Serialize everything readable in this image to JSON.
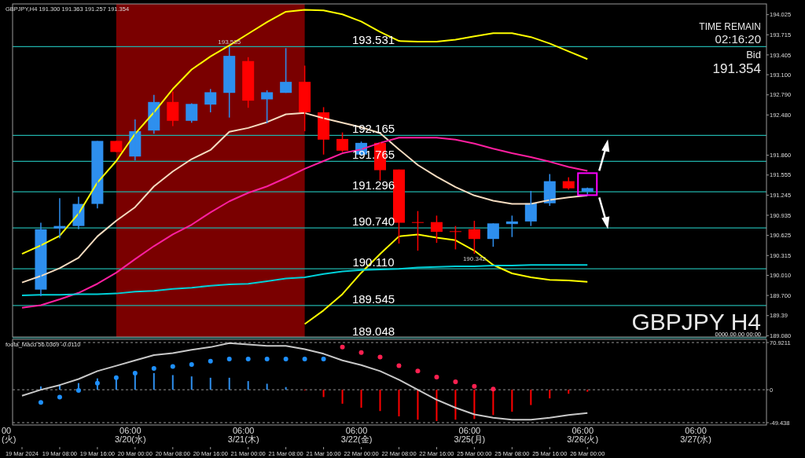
{
  "chart_data": [
    {
      "type": "candlestick",
      "title": "GBPJPY,H4 191.300 191.363 191.257 191.354",
      "categories": [
        null,
        null,
        null,
        null,
        null,
        null,
        null,
        null,
        null,
        null,
        null,
        null,
        null,
        null,
        null,
        null,
        null,
        null,
        null,
        null,
        null,
        null,
        null,
        null,
        null,
        null,
        null,
        null,
        null,
        null,
        null,
        null,
        null,
        null,
        null,
        null,
        null,
        null,
        null,
        null
      ],
      "ohlc": [
        null,
        [
          189.79,
          190.82,
          189.69,
          190.72
        ],
        [
          190.73,
          191.2,
          190.58,
          190.77
        ],
        [
          190.77,
          191.22,
          190.72,
          191.11
        ],
        [
          191.11,
          192.08,
          191.04,
          192.08
        ],
        [
          192.08,
          192.08,
          191.91,
          191.91
        ],
        [
          191.84,
          192.41,
          191.78,
          192.23
        ],
        [
          192.24,
          192.79,
          192.19,
          192.68
        ],
        [
          192.68,
          192.84,
          192.31,
          192.39
        ],
        [
          192.39,
          192.66,
          192.36,
          192.65
        ],
        [
          192.64,
          192.88,
          192.52,
          192.83
        ],
        [
          192.82,
          193.535,
          192.44,
          193.39
        ],
        [
          193.31,
          193.37,
          192.59,
          192.7
        ],
        [
          192.72,
          192.86,
          192.35,
          192.83
        ],
        [
          192.82,
          193.51,
          192.82,
          192.99
        ],
        [
          192.99,
          193.24,
          192.23,
          192.52
        ],
        [
          192.52,
          192.6,
          191.87,
          192.1
        ],
        [
          192.11,
          192.21,
          191.91,
          191.93
        ],
        [
          191.87,
          192.07,
          191.85,
          192.05
        ],
        [
          192.05,
          192.06,
          191.47,
          191.63
        ],
        [
          191.64,
          191.64,
          190.5,
          190.82
        ],
        [
          190.83,
          191.0,
          190.39,
          190.82
        ],
        [
          190.83,
          190.93,
          190.51,
          190.68
        ],
        [
          190.69,
          190.77,
          190.41,
          190.68
        ],
        [
          190.72,
          190.85,
          190.342,
          190.57
        ],
        [
          190.57,
          190.81,
          190.45,
          190.81
        ],
        [
          190.8,
          190.93,
          190.6,
          190.84
        ],
        [
          190.84,
          191.31,
          190.77,
          191.12
        ],
        [
          191.12,
          191.57,
          191.08,
          191.46
        ],
        [
          191.46,
          191.52,
          191.33,
          191.35
        ],
        [
          191.3,
          191.363,
          191.257,
          191.354
        ],
        null,
        null,
        null,
        null,
        null,
        null,
        null,
        null,
        null
      ],
      "colors": [
        null,
        "#2e8fee",
        "#2e8fee",
        "#2e8fee",
        "#2e8fee",
        "#ff0000",
        "#2e8fee",
        "#2e8fee",
        "#ff0000",
        "#2e8fee",
        "#2e8fee",
        "#2e8fee",
        "#ff0000",
        "#2e8fee",
        "#2e8fee",
        "#ff0000",
        "#ff0000",
        "#ff0000",
        "#2e8fee",
        "#ff0000",
        "#ff0000",
        "#ff0000",
        "#ff0000",
        "#ff0000",
        "#ff0000",
        "#2e8fee",
        "#2e8fee",
        "#2e8fee",
        "#2e8fee",
        "#ff0000",
        "#2e8fee",
        null,
        null,
        null,
        null,
        null,
        null,
        null,
        null,
        null
      ],
      "series": [
        {
          "type": "line",
          "color": "#ffff00",
          "values": [
            190.34,
            190.47,
            190.62,
            190.96,
            191.44,
            191.77,
            192.19,
            192.52,
            192.88,
            193.18,
            193.38,
            193.55,
            193.73,
            193.91,
            194.07,
            194.1,
            194.09,
            194.03,
            193.92,
            193.76,
            193.62,
            193.61,
            193.61,
            193.64,
            193.69,
            193.74,
            193.74,
            193.68,
            193.58,
            193.46,
            193.34,
            null,
            null,
            null,
            null,
            null,
            null,
            null,
            null,
            null
          ]
        },
        {
          "type": "line",
          "color": "#ffff00",
          "values": [
            null,
            null,
            null,
            null,
            null,
            null,
            null,
            null,
            null,
            null,
            null,
            null,
            null,
            null,
            null,
            189.26,
            189.47,
            189.72,
            190.05,
            190.34,
            190.61,
            190.64,
            190.59,
            190.55,
            190.39,
            190.17,
            190.04,
            189.98,
            189.94,
            189.93,
            189.91,
            null,
            null,
            null,
            null,
            null,
            null,
            null,
            null,
            null
          ]
        },
        {
          "type": "line",
          "color": "#f5dcc0",
          "values": [
            189.9,
            190.0,
            190.12,
            190.28,
            190.61,
            190.85,
            191.06,
            191.38,
            191.61,
            191.8,
            191.94,
            192.22,
            192.28,
            192.37,
            192.49,
            192.51,
            192.43,
            192.36,
            192.29,
            192.2,
            191.95,
            191.71,
            191.53,
            191.37,
            191.24,
            191.16,
            191.11,
            191.11,
            191.17,
            191.21,
            191.24,
            null,
            null,
            null,
            null,
            null,
            null,
            null,
            null,
            null
          ]
        },
        {
          "type": "line",
          "color": "#ff1fa0",
          "values": [
            189.51,
            189.55,
            189.64,
            189.74,
            189.88,
            190.05,
            190.26,
            190.46,
            190.64,
            190.79,
            190.98,
            191.15,
            191.28,
            191.38,
            191.51,
            191.65,
            191.77,
            191.89,
            191.95,
            192.05,
            192.13,
            192.13,
            192.13,
            192.1,
            192.04,
            191.96,
            191.89,
            191.83,
            191.76,
            191.68,
            191.62,
            null,
            null,
            null,
            null,
            null,
            null,
            null,
            null,
            null
          ]
        },
        {
          "type": "line",
          "color": "#00d0d8",
          "values": [
            189.7,
            189.71,
            189.71,
            189.72,
            189.72,
            189.73,
            189.76,
            189.77,
            189.8,
            189.82,
            189.85,
            189.87,
            189.88,
            189.92,
            189.96,
            189.98,
            190.03,
            190.07,
            190.09,
            190.1,
            190.11,
            190.13,
            190.14,
            190.15,
            190.15,
            190.16,
            190.16,
            190.17,
            190.17,
            190.17,
            190.17,
            null,
            null,
            null,
            null,
            null,
            null,
            null,
            null,
            null
          ]
        }
      ],
      "ylim": [
        189.06,
        194.19
      ],
      "yticks": [
        194.025,
        193.715,
        193.405,
        {
          "value": 193.1,
          "label": "193.100"
        },
        {
          "value": 192.79,
          "label": "192.790"
        },
        {
          "value": 192.48,
          "label": "192.480"
        },
        {
          "value": 191.86,
          "label": "191.860"
        },
        191.555,
        191.245,
        190.935,
        190.625,
        190.315,
        {
          "value": 190.01,
          "label": "190.010"
        },
        {
          "value": 189.7,
          "label": "189.700"
        },
        189.39,
        {
          "value": 189.08,
          "label": "189.080"
        }
      ],
      "tick_labels": "y",
      "ref_lines": [
        {
          "axis": "y",
          "value": 193.531,
          "label": "193.531",
          "color": "#20b2aa"
        },
        {
          "axis": "y",
          "value": 192.165,
          "label": "192.165",
          "color": "#20b2aa"
        },
        {
          "axis": "y",
          "value": 191.765,
          "label": "191.765",
          "color": "#20b2aa"
        },
        {
          "axis": "y",
          "value": 191.296,
          "label": "191.296",
          "color": "#20b2aa"
        },
        {
          "axis": "y",
          "value": 190.74,
          "label": "190.740",
          "color": "#20b2aa"
        },
        {
          "axis": "y",
          "value": 190.11,
          "label": "190.110",
          "color": "#20b2aa"
        },
        {
          "axis": "y",
          "value": 189.545,
          "label": "189.545",
          "color": "#20b2aa"
        },
        {
          "axis": "y",
          "value": 189.048,
          "label": "189.048",
          "color": "#20b2aa"
        }
      ],
      "annotations": [
        "TIME REMAIN",
        "02:16:20",
        "Bid",
        "191.354",
        "GBPJPY H4",
        "0000.00.00 00:00",
        {
          "text": "193.535",
          "y": 193.535
        },
        {
          "text": "190.342",
          "y": 190.342
        }
      ]
    },
    {
      "type": "bar",
      "title": "foota_Macd 56.0369 -0.0110",
      "categories": [
        "19 Mar 2024",
        null,
        "19 Mar 08:00",
        null,
        "19 Mar 16:00",
        null,
        "20 Mar 00:00",
        null,
        "20 Mar 08:00",
        null,
        "20 Mar 16:00",
        null,
        "21 Mar 00:00",
        null,
        "21 Mar 08:00",
        null,
        "21 Mar 16:00",
        null,
        "22 Mar 00:00",
        null,
        "22 Mar 08:00",
        null,
        "22 Mar 16:00",
        null,
        "25 Mar 00:00",
        null,
        "25 Mar 08:00",
        null,
        "25 Mar 16:00",
        null,
        "26 Mar 00:00",
        null,
        null,
        null,
        null,
        null,
        null,
        null,
        null,
        null
      ],
      "series": [
        {
          "colors": [
            null,
            "#2e8fee",
            "#2e8fee",
            "#2e8fee",
            "#2e8fee",
            "#2e8fee",
            "#2e8fee",
            "#2e8fee",
            "#2e8fee",
            "#2e8fee",
            "#2e8fee",
            "#2e8fee",
            "#2e8fee",
            "#2e8fee",
            "#2e8fee",
            "#ff0000",
            "#ff0000",
            "#ff0000",
            "#ff0000",
            "#ff0000",
            "#ff0000",
            "#ff0000",
            "#ff0000",
            "#ff0000",
            "#ff0000",
            "#ff0000",
            "#ff0000",
            "#ff0000",
            "#ff0000",
            "#ff0000",
            "#ff0000",
            null,
            null,
            null,
            null,
            null,
            null,
            null,
            null,
            null
          ],
          "values": [
            null,
            5,
            8,
            10,
            17,
            19,
            25,
            25,
            22,
            20,
            18,
            18,
            13,
            9,
            4,
            -1,
            -11,
            -21,
            -27,
            -32,
            -40,
            -45,
            -47,
            -45,
            -44,
            -38,
            -33,
            -23,
            -13,
            -6,
            -3,
            null,
            null,
            null,
            null,
            null,
            null,
            null,
            null,
            null
          ]
        },
        {
          "type": "scatter",
          "color": "#1e90ff",
          "marker": "circle",
          "values": [
            null,
            -19,
            -11,
            -1,
            10,
            18,
            25,
            32,
            35,
            38,
            43,
            46,
            46,
            46,
            46,
            46,
            46,
            null,
            null,
            null,
            null,
            null,
            null,
            null,
            null,
            null,
            null,
            null,
            null,
            null,
            null,
            null,
            null,
            null,
            null,
            null,
            null,
            null,
            null,
            null
          ]
        },
        {
          "type": "scatter",
          "color": "#ff2050",
          "marker": "circle",
          "values": [
            null,
            null,
            null,
            null,
            null,
            null,
            null,
            null,
            null,
            null,
            null,
            null,
            null,
            null,
            null,
            null,
            null,
            64,
            56,
            49,
            36,
            28,
            19,
            12,
            5,
            1,
            null,
            null,
            null,
            null,
            null,
            null,
            null,
            null,
            null,
            null,
            null,
            null,
            null,
            null
          ]
        },
        {
          "type": "line",
          "color": "#c8c8c8",
          "values": [
            -9,
            0,
            7,
            16,
            28,
            36,
            44,
            52,
            55,
            60,
            64,
            70,
            68,
            66,
            66,
            61,
            54,
            44,
            37,
            28,
            15,
            0,
            -15,
            -27,
            -37,
            -42,
            -45,
            -45,
            -42,
            -38,
            -35,
            null,
            null,
            null,
            null,
            null,
            null,
            null,
            null,
            null
          ]
        }
      ],
      "ylim": [
        -49.438,
        70.9211
      ],
      "yticks": [
        70.9211,
        0,
        -49.438
      ],
      "grid": "y",
      "annotations": [
        "00 (火)",
        "06:00 3/20(水)",
        "06:00 3/21(木)",
        "06:00 3/22(金)",
        "06:00 3/25(月)",
        "06:00 3/26(火)",
        "06:00 3/27(水)"
      ]
    }
  ]
}
